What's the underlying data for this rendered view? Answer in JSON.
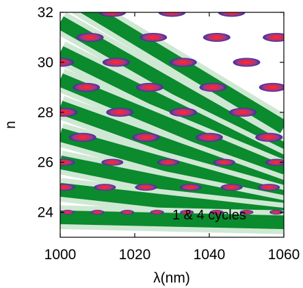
{
  "chart_data": {
    "type": "heatmap",
    "title": "",
    "xlabel": "λ(nm)",
    "ylabel": "n",
    "xlim": [
      1000,
      1060
    ],
    "ylim": [
      23,
      32
    ],
    "x_ticks": [
      1000,
      1020,
      1040,
      1060
    ],
    "y_ticks": [
      24,
      26,
      28,
      30,
      32
    ],
    "x_tick_labels": [
      "1000",
      "1020",
      "1040",
      "1060"
    ],
    "y_tick_labels": [
      "24",
      "26",
      "28",
      "30",
      "32"
    ],
    "grid": false,
    "legend": "none",
    "annotation": "1 & 4  cycles",
    "colors": {
      "band": "#0b8a2e",
      "band_light": "#cfe8d3",
      "background": "#ffffff",
      "peak_outer": "#3d2f9a",
      "peak_mid": "#a03a8a",
      "peak_core": "#e8283c"
    },
    "band_lines": [
      {
        "x0": 1000,
        "y0": 32.8,
        "x1": 1060,
        "y1": 27.4
      },
      {
        "x0": 1000,
        "y0": 31.6,
        "x1": 1060,
        "y1": 26.5
      },
      {
        "x0": 1000,
        "y0": 30.4,
        "x1": 1060,
        "y1": 26.0
      },
      {
        "x0": 1000,
        "y0": 29.3,
        "x1": 1060,
        "y1": 25.6
      },
      {
        "x0": 1000,
        "y0": 28.2,
        "x1": 1060,
        "y1": 25.0
      },
      {
        "x0": 1000,
        "y0": 27.1,
        "x1": 1060,
        "y1": 24.6
      },
      {
        "x0": 1000,
        "y0": 26.0,
        "x1": 1060,
        "y1": 24.2
      },
      {
        "x0": 1000,
        "y0": 24.9,
        "x1": 1060,
        "y1": 23.9
      },
      {
        "x0": 1000,
        "y0": 23.8,
        "x1": 1060,
        "y1": 23.6
      }
    ],
    "peaks": [
      {
        "n": 32,
        "x": [
          1014,
          1030,
          1046
        ]
      },
      {
        "n": 31,
        "x": [
          1008,
          1025,
          1042,
          1058
        ]
      },
      {
        "n": 30,
        "x": [
          1000,
          1015,
          1033,
          1050
        ]
      },
      {
        "n": 29,
        "x": [
          1007,
          1024,
          1041,
          1057
        ]
      },
      {
        "n": 28,
        "x": [
          1001,
          1016,
          1033,
          1049
        ]
      },
      {
        "n": 27,
        "x": [
          1006,
          1023,
          1040,
          1056
        ]
      },
      {
        "n": 26,
        "x": [
          1001,
          1014,
          1029,
          1044,
          1058
        ]
      },
      {
        "n": 25,
        "x": [
          1001,
          1012,
          1023,
          1035,
          1046,
          1056
        ]
      },
      {
        "n": 24,
        "x": [
          1002,
          1010,
          1018,
          1026,
          1034,
          1042,
          1050,
          1058
        ]
      }
    ]
  }
}
